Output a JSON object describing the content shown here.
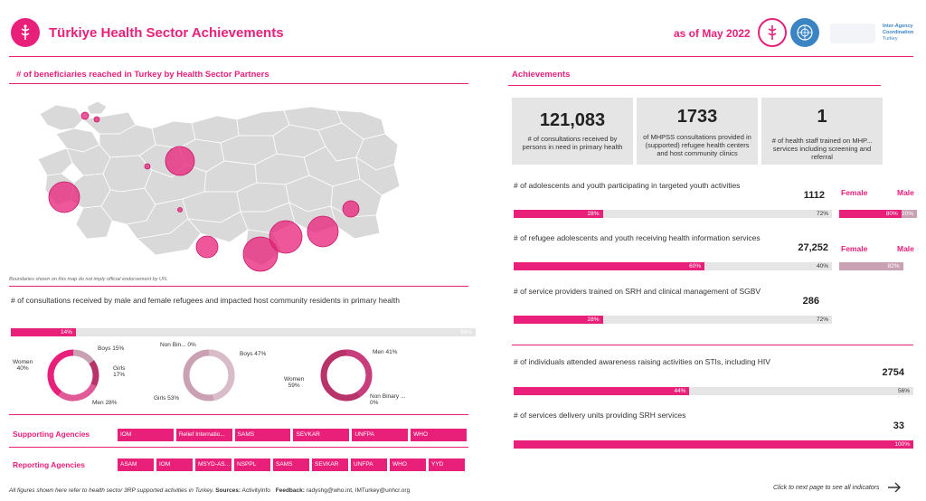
{
  "header": {
    "title": "Türkiye Health Sector Achievements",
    "date": "as of May 2022",
    "iac_line1": "Inter-Agency",
    "iac_line2": "Coordination",
    "iac_line3": "Turkey"
  },
  "map_section": {
    "title": "# of beneficiaries reached in Turkey by Health Sector Partners",
    "disclaimer": "Boundaries shown on this map do not imply official endorsement by UN."
  },
  "consult_section": {
    "title": "# of consultations received by male and female refugees and impacted host community residents in primary health",
    "bar_left_pct": 14,
    "bar_left_label": "14%",
    "bar_right_label": "86%",
    "donut1": {
      "women": "Women\n40%",
      "boys": "Boys 15%",
      "girls": "Girls\n17%",
      "men": "Men 28%"
    },
    "donut2": {
      "nonbin": "Non Bin... 0%",
      "boys": "Boys 47%",
      "girls": "Girls 53%"
    },
    "donut3": {
      "men": "Men 41%",
      "women": "Women\n59%",
      "nonbin": "Non Binary ...\n0%"
    }
  },
  "agencies": {
    "supporting_label": "Supporting Agencies",
    "supporting": [
      "IOM",
      "Relief Internatio...",
      "SAMS",
      "SEVKAR",
      "UNFPA",
      "WHO"
    ],
    "reporting_label": "Reporting Agencies",
    "reporting": [
      "ASAM",
      "IOM",
      "MSYD-AS...",
      "NSPPL",
      "SAMS",
      "SEVKAR",
      "UNFPA",
      "WHO",
      "YYD"
    ]
  },
  "footer": {
    "text": "All figures shown here refer to health sector 3RP supported activities in Turkey.",
    "sources_label": "Sources:",
    "sources": "ActivityInfo",
    "feedback_label": "Feedback:",
    "feedback": "radyshg@who.int, IMTurkey@unhcr.org",
    "next": "Click to next page to see all indicators"
  },
  "achievements": {
    "title": "Achievements",
    "kpis": [
      {
        "value": "121,083",
        "label": "# of consultations received by persons in need in primary health"
      },
      {
        "value": "1733",
        "label": "of MHPSS consultations provided in (supported) refugee health centers and host community clinics"
      },
      {
        "value": "1",
        "label": "# of health staff trained on MHP... services including screening and referral"
      }
    ],
    "female_label": "Female",
    "male_label": "Male",
    "indicators": [
      {
        "label": "# of adolescents and youth participating in targeted youth activities",
        "value": "1112",
        "fill": 28,
        "fill_label": "28%",
        "rest_label": "72%",
        "female": 80,
        "female_label": "80%",
        "male_label": "20%"
      },
      {
        "label": "# of refugee adolescents and youth receiving health information services",
        "value": "27,252",
        "fill": 60,
        "fill_label": "60%",
        "rest_label": "40%",
        "female": 82,
        "female_label": "82%",
        "male_label": ""
      },
      {
        "label": "# of service providers trained on SRH and clinical management of SGBV",
        "value": "286",
        "fill": 28,
        "fill_label": "28%",
        "rest_label": "72%"
      },
      {
        "label": "# of individuals attended awareness raising activities on STIs, including HIV",
        "value": "2754",
        "fill": 44,
        "fill_label": "44%",
        "rest_label": "56%"
      },
      {
        "label": "# of services delivery units providing SRH services",
        "value": "33",
        "fill": 100,
        "fill_label": "100%",
        "rest_label": ""
      }
    ]
  },
  "colors": {
    "accent": "#e8207a",
    "grey": "#e5e5e5",
    "mauve": "#c9a1b3",
    "dark_pink": "#b8336a"
  }
}
